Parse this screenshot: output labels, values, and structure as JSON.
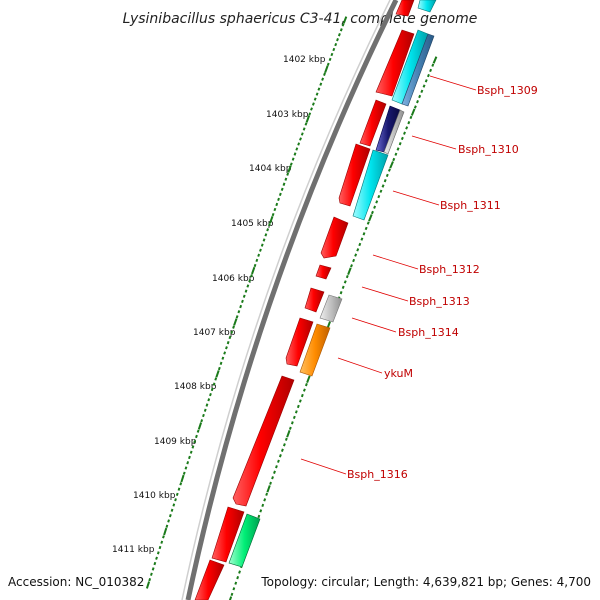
{
  "title": "Lysinibacillus sphaericus C3-41, complete genome",
  "accession": "Accession: NC_010382",
  "summary": "Topology: circular; Length: 4,639,821 bp; Genes: 4,700",
  "ticks": [
    "1402 kbp",
    "1403 kbp",
    "1404 kbp",
    "1405 kbp",
    "1406 kbp",
    "1407 kbp",
    "1408 kbp",
    "1409 kbp",
    "1410 kbp",
    "1411 kbp"
  ],
  "genes": [
    "Bsph_1309",
    "Bsph_1310",
    "Bsph_1311",
    "Bsph_1312",
    "Bsph_1313",
    "Bsph_1314",
    "ykuM",
    "Bsph_1316"
  ],
  "colors": {
    "backbone": "#808080",
    "cds": "#ff0000",
    "cyan": "#00e5ee",
    "steelblue": "#4682b4",
    "navy": "#191970",
    "gray": "#c0c0c0",
    "orange": "#ff8c00",
    "green": "#00ee76",
    "ticks": "#1a7a1a",
    "label": "#c00000"
  }
}
